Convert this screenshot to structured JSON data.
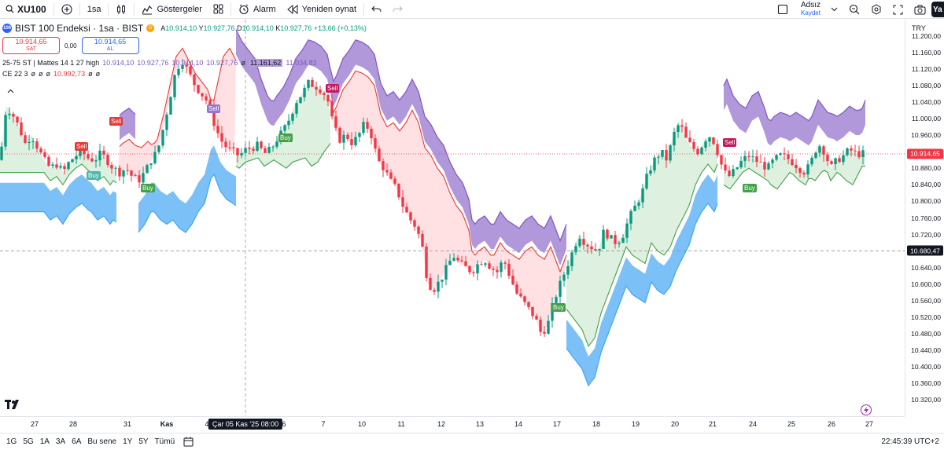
{
  "toolbar": {
    "symbol": "XU100",
    "interval": "1sa",
    "indicators_label": "Göstergeler",
    "alarm_label": "Alarm",
    "replay_label": "Yeniden oynat",
    "user_name": "Adsız",
    "save_label": "Kaydet",
    "publish_short": "Ya"
  },
  "legend": {
    "logo_text": "100",
    "title": "BIST 100 Endeksi · 1sa · BIST",
    "badge": "D",
    "open_key": "A",
    "open": "10.914,10",
    "high_key": "Y",
    "high": "10.927,76",
    "low_key": "D",
    "low": "10.914,10",
    "close_key": "K",
    "close": "10.927,76",
    "change": "+13,66 (+0,13%)",
    "sell_price": "10.914,65",
    "sell_label": "SAT",
    "spread": "0,00",
    "buy_price": "10.914,65",
    "buy_label": "AL"
  },
  "indicators": [
    {
      "name": "25-75 ST | Mattes 14 1 27 high",
      "values": [
        "10.914,10",
        "10.927,76",
        "10.914,10",
        "10.927,76",
        "ø",
        "11.161,62",
        "11.034,83"
      ]
    },
    {
      "name": "CE 22 3",
      "values": [
        "ø",
        "ø",
        "ø",
        "10.992,73",
        "ø",
        "ø"
      ]
    }
  ],
  "price_axis": {
    "currency": "TRY",
    "labels": [
      "11.200,00",
      "11.160,00",
      "11.120,00",
      "11.080,00",
      "11.040,00",
      "11.000,00",
      "10.960,00",
      "10.920,00",
      "10.880,00",
      "10.840,00",
      "10.800,00",
      "10.760,00",
      "10.720,00",
      "10.680,00",
      "10.640,00",
      "10.600,00",
      "10.560,00",
      "10.520,00",
      "10.480,00",
      "10.440,00",
      "10.400,00",
      "10.360,00",
      "10.320,00"
    ],
    "last_price": "10.914,65",
    "cursor_price": "10.680,47"
  },
  "time_axis": {
    "labels": [
      "27",
      "28",
      "31",
      "Kas",
      "4",
      "6",
      "7",
      "10",
      "11",
      "12",
      "13",
      "14",
      "17",
      "18",
      "19",
      "20",
      "21",
      "24",
      "25",
      "26",
      "27"
    ],
    "cursor_label": "Çar 05 Kas '25   08:00"
  },
  "signals": {
    "sell": "Sell",
    "buy": "Buy"
  },
  "colors": {
    "up": "#089981",
    "down": "#f23645",
    "cloud_blue": "#64b5f6",
    "cloud_purple": "#9575cd",
    "fill_green": "#c8e6c9",
    "fill_red": "#ffcdd2"
  },
  "bottom": {
    "ranges": [
      "1G",
      "5G",
      "1A",
      "3A",
      "6A",
      "Bu sene",
      "1Y",
      "5Y",
      "Tümü"
    ],
    "clock": "22:45:39 UTC+2"
  },
  "chart_data": {
    "type": "candlestick",
    "title": "BIST 100 Endeksi · 1sa · BIST",
    "ylim": [
      10300,
      11220
    ],
    "y_ticks": [
      11200,
      11160,
      11120,
      11080,
      11040,
      11000,
      10960,
      10920,
      10880,
      10840,
      10800,
      10760,
      10720,
      10680,
      10640,
      10600,
      10560,
      10520,
      10480,
      10440,
      10400,
      10360,
      10320
    ],
    "close_path": [
      [
        0,
        10900
      ],
      [
        8,
        11030
      ],
      [
        16,
        11010
      ],
      [
        24,
        10980
      ],
      [
        32,
        10940
      ],
      [
        40,
        10960
      ],
      [
        48,
        10930
      ],
      [
        56,
        10900
      ],
      [
        64,
        10880
      ],
      [
        72,
        10890
      ],
      [
        80,
        10870
      ],
      [
        88,
        10895
      ],
      [
        96,
        10910
      ],
      [
        104,
        10920
      ],
      [
        112,
        10905
      ],
      [
        120,
        10900
      ],
      [
        128,
        10915
      ],
      [
        136,
        10900
      ],
      [
        144,
        10880
      ],
      [
        152,
        10870
      ],
      [
        160,
        10880
      ],
      [
        168,
        10860
      ],
      [
        176,
        10850
      ],
      [
        184,
        10870
      ],
      [
        192,
        10900
      ],
      [
        200,
        10920
      ],
      [
        208,
        10980
      ],
      [
        216,
        11050
      ],
      [
        224,
        11120
      ],
      [
        232,
        11140
      ],
      [
        240,
        11110
      ],
      [
        248,
        11080
      ],
      [
        256,
        11060
      ],
      [
        264,
        11040
      ],
      [
        272,
        10990
      ],
      [
        280,
        10950
      ],
      [
        288,
        10930
      ],
      [
        296,
        10920
      ],
      [
        304,
        10910
      ],
      [
        312,
        10925
      ],
      [
        320,
        10930
      ],
      [
        328,
        10935
      ],
      [
        336,
        10915
      ],
      [
        344,
        10925
      ],
      [
        352,
        10950
      ],
      [
        360,
        10970
      ],
      [
        368,
        11000
      ],
      [
        376,
        11040
      ],
      [
        384,
        11060
      ],
      [
        392,
        11085
      ],
      [
        400,
        11080
      ],
      [
        408,
        11070
      ],
      [
        416,
        11050
      ],
      [
        424,
        10980
      ],
      [
        432,
        10950
      ],
      [
        440,
        10960
      ],
      [
        448,
        10940
      ],
      [
        456,
        10960
      ],
      [
        464,
        10990
      ],
      [
        472,
        10960
      ],
      [
        480,
        10900
      ],
      [
        488,
        10880
      ],
      [
        496,
        10850
      ],
      [
        504,
        10830
      ],
      [
        512,
        10790
      ],
      [
        520,
        10760
      ],
      [
        528,
        10740
      ],
      [
        536,
        10700
      ],
      [
        544,
        10600
      ],
      [
        552,
        10590
      ],
      [
        560,
        10610
      ],
      [
        568,
        10640
      ],
      [
        576,
        10670
      ],
      [
        584,
        10650
      ],
      [
        592,
        10640
      ],
      [
        600,
        10630
      ],
      [
        608,
        10650
      ],
      [
        616,
        10660
      ],
      [
        624,
        10640
      ],
      [
        632,
        10630
      ],
      [
        640,
        10660
      ],
      [
        648,
        10620
      ],
      [
        656,
        10580
      ],
      [
        664,
        10560
      ],
      [
        672,
        10540
      ],
      [
        680,
        10520
      ],
      [
        688,
        10480
      ],
      [
        696,
        10500
      ],
      [
        704,
        10560
      ],
      [
        712,
        10600
      ],
      [
        720,
        10640
      ],
      [
        728,
        10680
      ],
      [
        736,
        10720
      ],
      [
        744,
        10700
      ],
      [
        752,
        10690
      ],
      [
        760,
        10680
      ],
      [
        768,
        10730
      ],
      [
        776,
        10710
      ],
      [
        784,
        10700
      ],
      [
        792,
        10720
      ],
      [
        800,
        10760
      ],
      [
        808,
        10790
      ],
      [
        816,
        10820
      ],
      [
        824,
        10870
      ],
      [
        832,
        10900
      ],
      [
        840,
        10920
      ],
      [
        848,
        10900
      ],
      [
        856,
        10960
      ],
      [
        864,
        10990
      ],
      [
        872,
        10950
      ],
      [
        880,
        10930
      ],
      [
        888,
        10920
      ],
      [
        896,
        10950
      ],
      [
        904,
        10960
      ],
      [
        912,
        10920
      ],
      [
        920,
        10870
      ],
      [
        928,
        10860
      ],
      [
        936,
        10880
      ],
      [
        944,
        10900
      ],
      [
        952,
        10910
      ],
      [
        960,
        10900
      ],
      [
        968,
        10890
      ],
      [
        976,
        10880
      ],
      [
        984,
        10900
      ],
      [
        992,
        10910
      ],
      [
        1000,
        10905
      ],
      [
        1008,
        10895
      ],
      [
        1016,
        10880
      ],
      [
        1024,
        10870
      ],
      [
        1032,
        10900
      ],
      [
        1040,
        10940
      ],
      [
        1048,
        10920
      ],
      [
        1056,
        10880
      ],
      [
        1064,
        10900
      ],
      [
        1072,
        10910
      ],
      [
        1080,
        10925
      ],
      [
        1088,
        10915
      ],
      [
        1096,
        10915
      ],
      [
        1100,
        10914.65
      ]
    ]
  }
}
